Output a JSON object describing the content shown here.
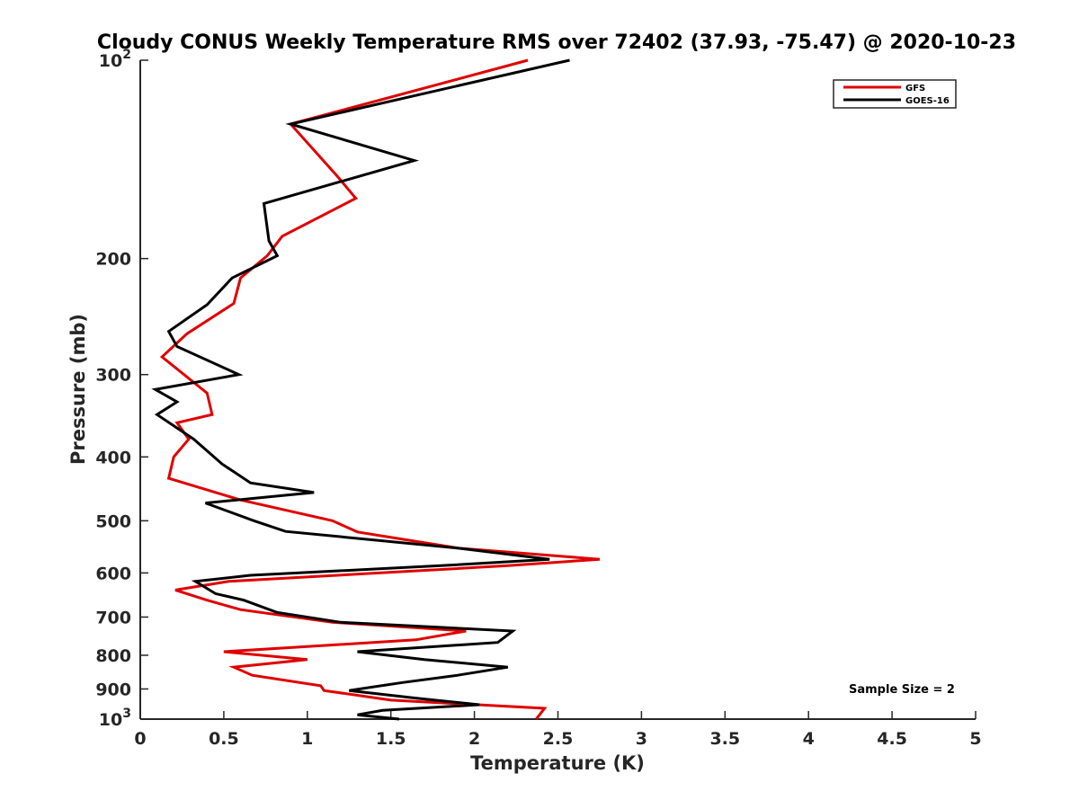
{
  "chart_data": {
    "type": "line",
    "title": "Cloudy CONUS Weekly Temperature RMS over 72402 (37.93, -75.47) @ 2020-10-23",
    "xlabel": "Temperature (K)",
    "ylabel": "Pressure (mb)",
    "xlim": [
      0,
      5
    ],
    "ylim": [
      100,
      1000
    ],
    "yscale": "log",
    "yreversed": true,
    "x_ticks": [
      0,
      0.5,
      1,
      1.5,
      2,
      2.5,
      3,
      3.5,
      4,
      4.5,
      5
    ],
    "x_tick_labels": [
      "0",
      "0.5",
      "1",
      "1.5",
      "2",
      "2.5",
      "3",
      "3.5",
      "4",
      "4.5",
      "5"
    ],
    "y_ticks": [
      100,
      200,
      300,
      400,
      500,
      600,
      700,
      800,
      900,
      1000
    ],
    "y_tick_labels": [
      {
        "base": "10",
        "sup": "2"
      },
      {
        "base": "200",
        "sup": ""
      },
      {
        "base": "300",
        "sup": ""
      },
      {
        "base": "400",
        "sup": ""
      },
      {
        "base": "500",
        "sup": ""
      },
      {
        "base": "600",
        "sup": ""
      },
      {
        "base": "700",
        "sup": ""
      },
      {
        "base": "800",
        "sup": ""
      },
      {
        "base": "900",
        "sup": ""
      },
      {
        "base": "10",
        "sup": "3"
      }
    ],
    "grid": false,
    "legend_position": "top-right",
    "annotation": "Sample Size = 2",
    "series": [
      {
        "name": "GFS",
        "color": "#e00000",
        "points": [
          [
            2.32,
            100
          ],
          [
            0.9,
            125
          ],
          [
            1.18,
            150
          ],
          [
            1.29,
            162
          ],
          [
            0.85,
            185
          ],
          [
            0.76,
            198
          ],
          [
            0.6,
            214
          ],
          [
            0.56,
            234
          ],
          [
            0.28,
            260
          ],
          [
            0.13,
            282
          ],
          [
            0.4,
            320
          ],
          [
            0.43,
            345
          ],
          [
            0.22,
            355
          ],
          [
            0.29,
            376
          ],
          [
            0.2,
            400
          ],
          [
            0.17,
            431
          ],
          [
            0.6,
            465
          ],
          [
            1.15,
            500
          ],
          [
            1.3,
            520
          ],
          [
            1.9,
            550
          ],
          [
            2.75,
            572
          ],
          [
            2.2,
            585
          ],
          [
            0.53,
            618
          ],
          [
            0.21,
            637
          ],
          [
            0.4,
            660
          ],
          [
            0.6,
            682
          ],
          [
            1.15,
            713
          ],
          [
            1.95,
            735
          ],
          [
            1.65,
            758
          ],
          [
            0.5,
            790
          ],
          [
            1.0,
            812
          ],
          [
            0.56,
            834
          ],
          [
            0.67,
            858
          ],
          [
            1.08,
            890
          ],
          [
            1.1,
            905
          ],
          [
            1.5,
            936
          ],
          [
            2.42,
            963
          ],
          [
            2.37,
            1000
          ]
        ]
      },
      {
        "name": "GOES-16",
        "color": "#000000",
        "points": [
          [
            2.57,
            100
          ],
          [
            0.9,
            125
          ],
          [
            1.64,
            142
          ],
          [
            0.74,
            165
          ],
          [
            0.77,
            188
          ],
          [
            0.82,
            198
          ],
          [
            0.55,
            214
          ],
          [
            0.4,
            235
          ],
          [
            0.17,
            258
          ],
          [
            0.22,
            272
          ],
          [
            0.59,
            300
          ],
          [
            0.09,
            316
          ],
          [
            0.22,
            330
          ],
          [
            0.1,
            345
          ],
          [
            0.32,
            376
          ],
          [
            0.49,
            410
          ],
          [
            0.66,
            438
          ],
          [
            1.04,
            453
          ],
          [
            0.39,
            470
          ],
          [
            0.68,
            500
          ],
          [
            0.87,
            519
          ],
          [
            1.9,
            550
          ],
          [
            2.45,
            572
          ],
          [
            1.8,
            585
          ],
          [
            0.66,
            605
          ],
          [
            0.33,
            618
          ],
          [
            0.45,
            645
          ],
          [
            0.62,
            660
          ],
          [
            0.82,
            689
          ],
          [
            1.2,
            713
          ],
          [
            2.23,
            735
          ],
          [
            2.14,
            765
          ],
          [
            1.3,
            790
          ],
          [
            1.7,
            812
          ],
          [
            2.2,
            834
          ],
          [
            1.9,
            858
          ],
          [
            1.57,
            880
          ],
          [
            1.25,
            905
          ],
          [
            1.66,
            930
          ],
          [
            2.03,
            951
          ],
          [
            1.45,
            970
          ],
          [
            1.3,
            985
          ],
          [
            1.55,
            1000
          ]
        ]
      }
    ]
  }
}
